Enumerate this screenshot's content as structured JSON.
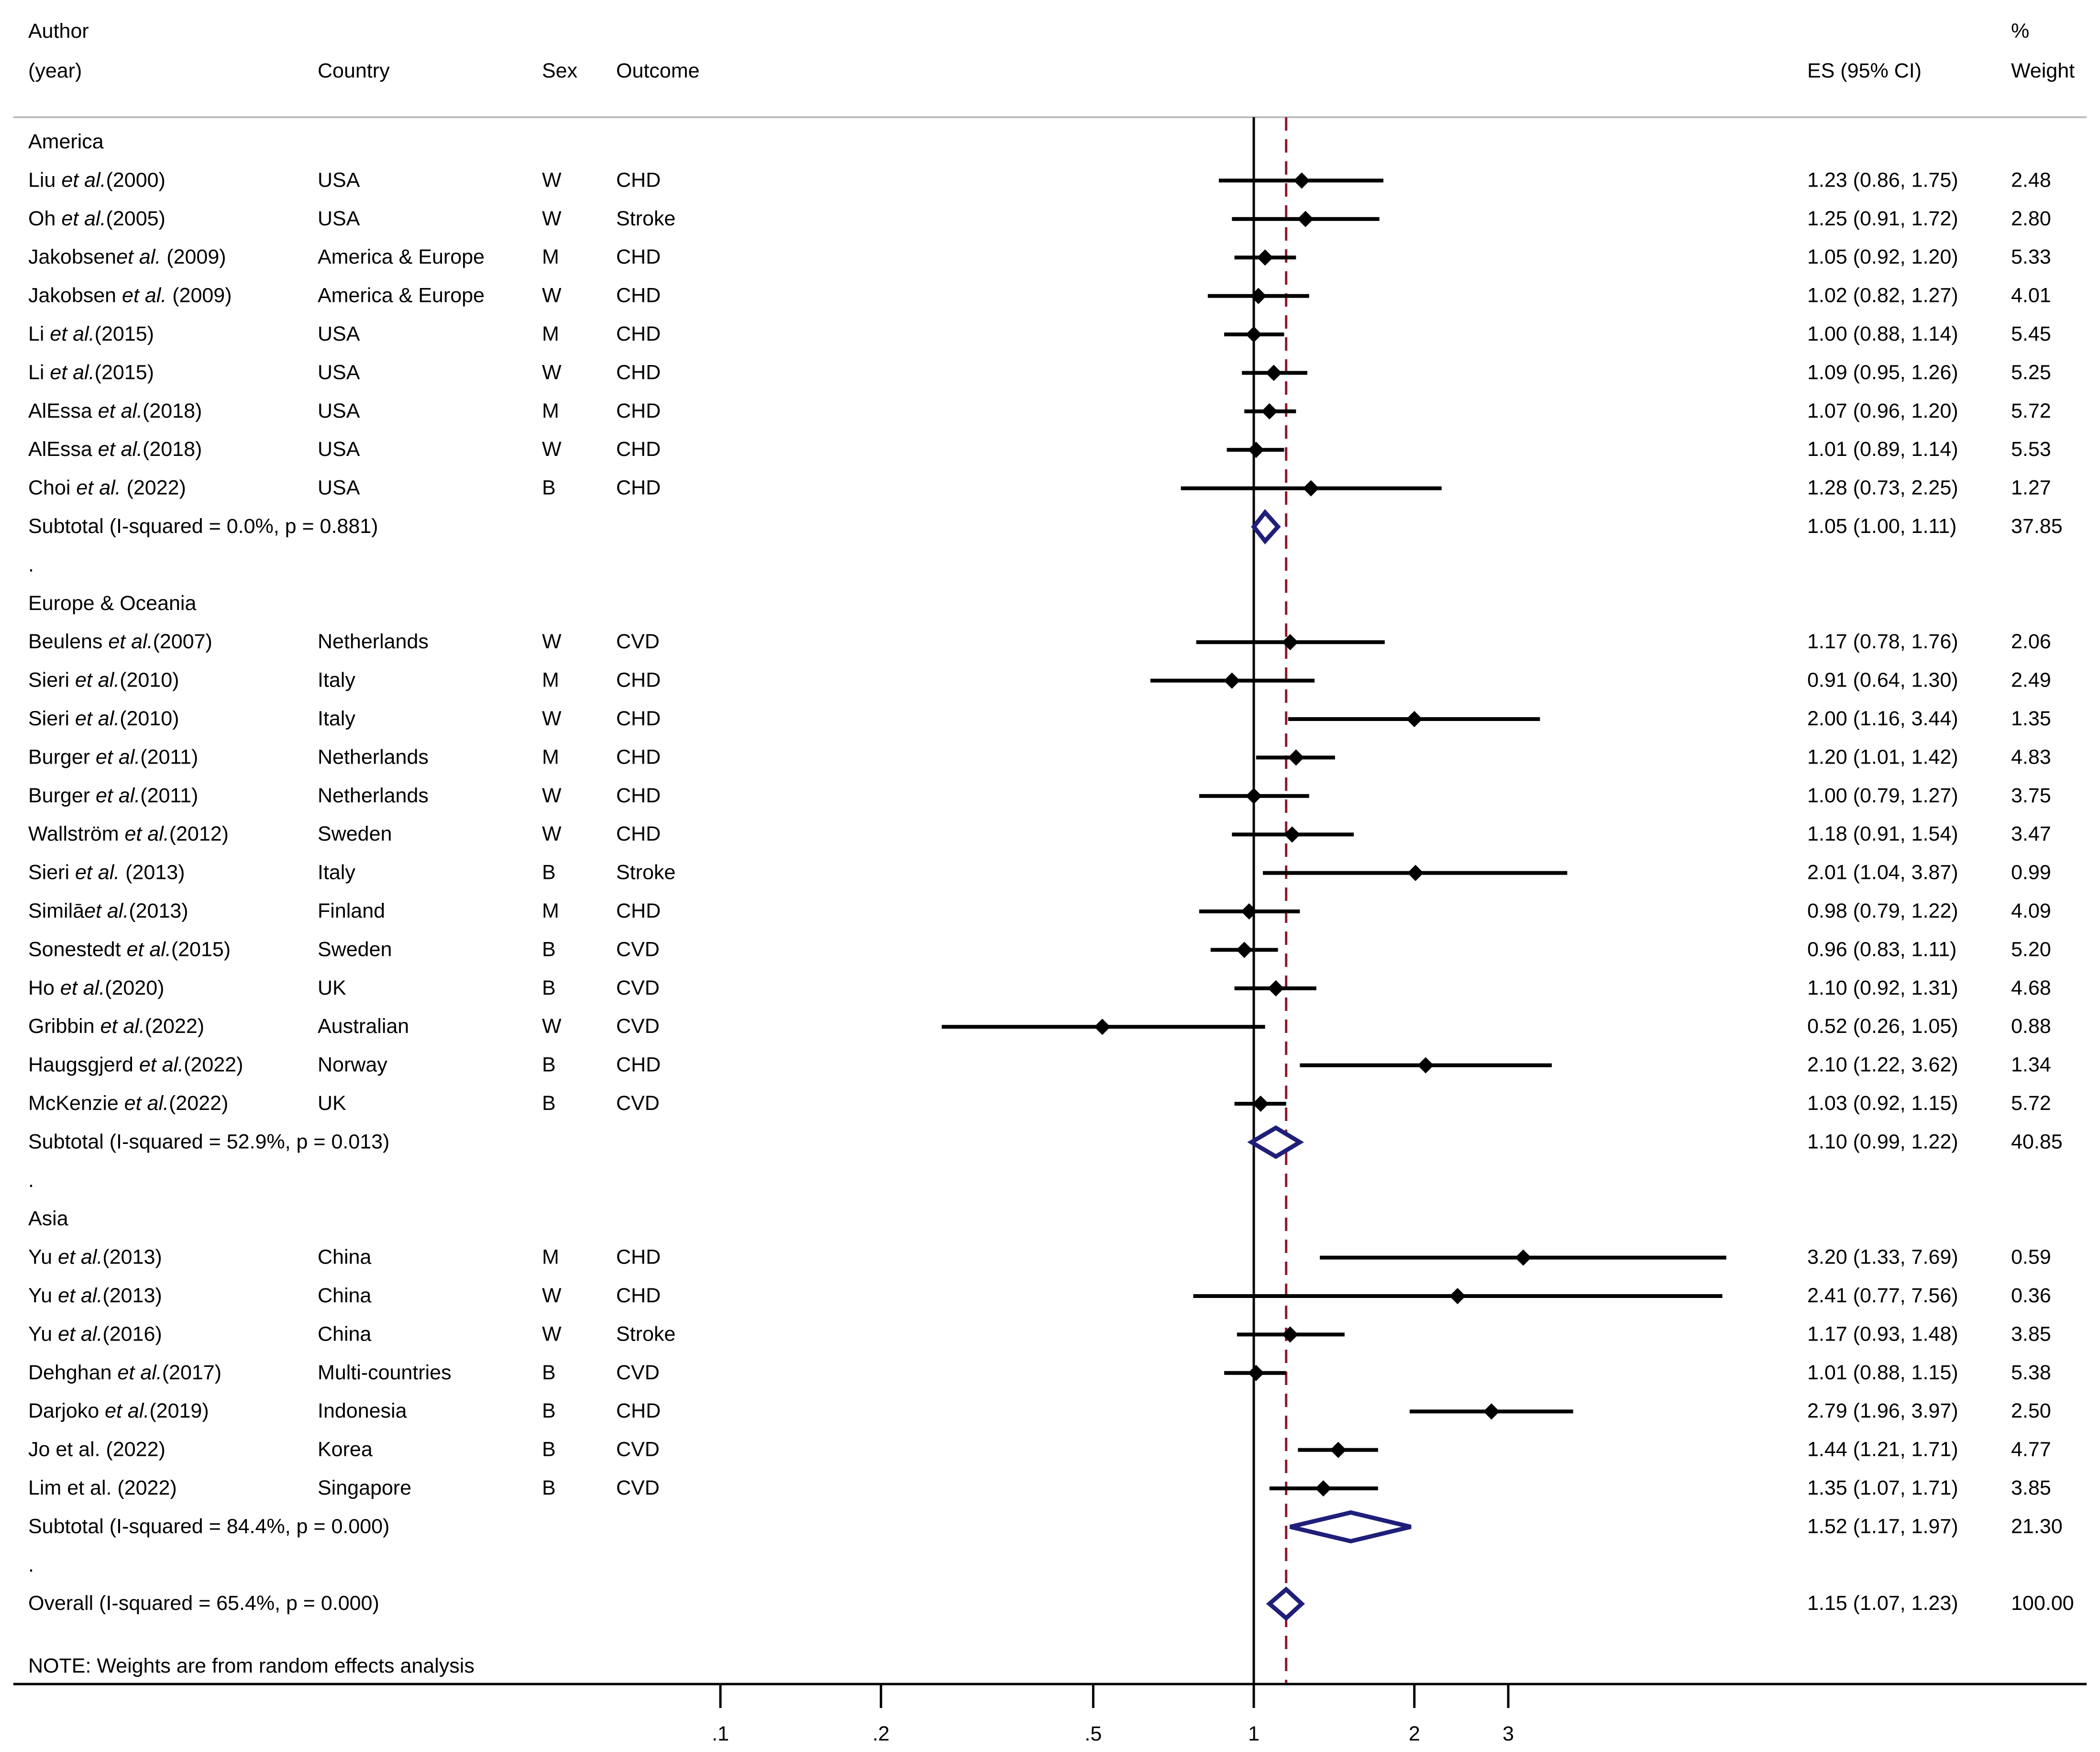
{
  "chart_data": {
    "type": "forest",
    "scale": "log",
    "xlim": [
      0.1,
      10
    ],
    "x_ticks": [
      {
        "value": 0.1,
        "label": ".1"
      },
      {
        "value": 0.2,
        "label": ".2"
      },
      {
        "value": 0.5,
        "label": ".5"
      },
      {
        "value": 1,
        "label": "1"
      },
      {
        "value": 2,
        "label": "2"
      },
      {
        "value": 3,
        "label": "3"
      }
    ],
    "null_line": 1,
    "overall_line": 1.15,
    "headers": {
      "author_line1": "Author",
      "author_line2": "(year)",
      "country": "Country",
      "sex": "Sex",
      "outcome": "Outcome",
      "es": "ES (95% CI)",
      "weight_line1": "%",
      "weight_line2": "Weight"
    },
    "rows": [
      {
        "kind": "group",
        "label": "America"
      },
      {
        "kind": "study",
        "author_pre": "Liu ",
        "author_it": "et al.",
        "author_post": "(2000)",
        "country": "USA",
        "sex": "W",
        "outcome": "CHD",
        "es": 1.23,
        "lo": 0.86,
        "hi": 1.75,
        "es_text": "1.23 (0.86, 1.75)",
        "weight": "2.48"
      },
      {
        "kind": "study",
        "author_pre": "Oh ",
        "author_it": "et al.",
        "author_post": "(2005)",
        "country": "USA",
        "sex": "W",
        "outcome": "Stroke",
        "es": 1.25,
        "lo": 0.91,
        "hi": 1.72,
        "es_text": "1.25 (0.91, 1.72)",
        "weight": "2.80"
      },
      {
        "kind": "study",
        "author_pre": "Jakobsen",
        "author_it": "et al.",
        "author_post": " (2009)",
        "country": "America & Europe",
        "sex": "M",
        "outcome": "CHD",
        "es": 1.05,
        "lo": 0.92,
        "hi": 1.2,
        "es_text": "1.05 (0.92, 1.20)",
        "weight": "5.33"
      },
      {
        "kind": "study",
        "author_pre": "Jakobsen ",
        "author_it": "et al.",
        "author_post": " (2009)",
        "country": "America & Europe",
        "sex": "W",
        "outcome": "CHD",
        "es": 1.02,
        "lo": 0.82,
        "hi": 1.27,
        "es_text": "1.02 (0.82, 1.27)",
        "weight": "4.01"
      },
      {
        "kind": "study",
        "author_pre": "Li ",
        "author_it": "et al.",
        "author_post": "(2015)",
        "country": "USA",
        "sex": "M",
        "outcome": "CHD",
        "es": 1.0,
        "lo": 0.88,
        "hi": 1.14,
        "es_text": "1.00 (0.88, 1.14)",
        "weight": "5.45"
      },
      {
        "kind": "study",
        "author_pre": "Li ",
        "author_it": "et al.",
        "author_post": "(2015)",
        "country": "USA",
        "sex": "W",
        "outcome": "CHD",
        "es": 1.09,
        "lo": 0.95,
        "hi": 1.26,
        "es_text": "1.09 (0.95, 1.26)",
        "weight": "5.25"
      },
      {
        "kind": "study",
        "author_pre": "AlEssa ",
        "author_it": "et al.",
        "author_post": "(2018)",
        "country": "USA",
        "sex": "M",
        "outcome": "CHD",
        "es": 1.07,
        "lo": 0.96,
        "hi": 1.2,
        "es_text": "1.07 (0.96, 1.20)",
        "weight": "5.72"
      },
      {
        "kind": "study",
        "author_pre": "AlEssa ",
        "author_it": "et al.",
        "author_post": "(2018)",
        "country": "USA",
        "sex": "W",
        "outcome": "CHD",
        "es": 1.01,
        "lo": 0.89,
        "hi": 1.14,
        "es_text": "1.01 (0.89, 1.14)",
        "weight": "5.53"
      },
      {
        "kind": "study",
        "author_pre": "Choi ",
        "author_it": "et al.",
        "author_post": " (2022)",
        "country": "USA",
        "sex": "B",
        "outcome": "CHD",
        "es": 1.28,
        "lo": 0.73,
        "hi": 2.25,
        "es_text": "1.28 (0.73, 2.25)",
        "weight": "1.27"
      },
      {
        "kind": "subtotal",
        "label": "Subtotal  (I-squared = 0.0%, p = 0.881)",
        "es": 1.05,
        "lo": 1.0,
        "hi": 1.11,
        "es_text": "1.05 (1.00, 1.11)",
        "weight": "37.85"
      },
      {
        "kind": "spacer",
        "label": "."
      },
      {
        "kind": "group",
        "label": "Europe & Oceania"
      },
      {
        "kind": "study",
        "author_pre": "Beulens ",
        "author_it": "et al.",
        "author_post": "(2007)",
        "country": "Netherlands",
        "sex": "W",
        "outcome": "CVD",
        "es": 1.17,
        "lo": 0.78,
        "hi": 1.76,
        "es_text": "1.17 (0.78, 1.76)",
        "weight": "2.06"
      },
      {
        "kind": "study",
        "author_pre": "Sieri  ",
        "author_it": "et al.",
        "author_post": "(2010)",
        "country": "Italy",
        "sex": "M",
        "outcome": "CHD",
        "es": 0.91,
        "lo": 0.64,
        "hi": 1.3,
        "es_text": "0.91 (0.64, 1.30)",
        "weight": "2.49"
      },
      {
        "kind": "study",
        "author_pre": "Sieri ",
        "author_it": "et al.",
        "author_post": "(2010)",
        "country": "Italy",
        "sex": "W",
        "outcome": "CHD",
        "es": 2.0,
        "lo": 1.16,
        "hi": 3.44,
        "es_text": "2.00 (1.16, 3.44)",
        "weight": "1.35"
      },
      {
        "kind": "study",
        "author_pre": "Burger ",
        "author_it": "et al.",
        "author_post": "(2011)",
        "country": "Netherlands",
        "sex": "M",
        "outcome": "CHD",
        "es": 1.2,
        "lo": 1.01,
        "hi": 1.42,
        "es_text": "1.20 (1.01, 1.42)",
        "weight": "4.83"
      },
      {
        "kind": "study",
        "author_pre": "Burger ",
        "author_it": "et al.",
        "author_post": "(2011)",
        "country": "Netherlands",
        "sex": "W",
        "outcome": "CHD",
        "es": 1.0,
        "lo": 0.79,
        "hi": 1.27,
        "es_text": "1.00 (0.79, 1.27)",
        "weight": "3.75"
      },
      {
        "kind": "study",
        "author_pre": "Wallström ",
        "author_it": "et al.",
        "author_post": "(2012)",
        "country": "Sweden",
        "sex": "W",
        "outcome": "CHD",
        "es": 1.18,
        "lo": 0.91,
        "hi": 1.54,
        "es_text": "1.18 (0.91, 1.54)",
        "weight": "3.47"
      },
      {
        "kind": "study",
        "author_pre": "Sieri ",
        "author_it": "et al.",
        "author_post": " (2013)",
        "country": "Italy",
        "sex": "B",
        "outcome": "Stroke",
        "es": 2.01,
        "lo": 1.04,
        "hi": 3.87,
        "es_text": "2.01 (1.04, 3.87)",
        "weight": "0.99"
      },
      {
        "kind": "study",
        "author_pre": "Similā",
        "author_it": "et al.",
        "author_post": "(2013)",
        "country": "Finland",
        "sex": "M",
        "outcome": "CHD",
        "es": 0.98,
        "lo": 0.79,
        "hi": 1.22,
        "es_text": "0.98 (0.79, 1.22)",
        "weight": "4.09"
      },
      {
        "kind": "study",
        "author_pre": "Sonestedt ",
        "author_it": "et al.",
        "author_post": "(2015)",
        "country": "Sweden",
        "sex": "B",
        "outcome": "CVD",
        "es": 0.96,
        "lo": 0.83,
        "hi": 1.11,
        "es_text": "0.96 (0.83, 1.11)",
        "weight": "5.20"
      },
      {
        "kind": "study",
        "author_pre": "Ho ",
        "author_it": "et al.",
        "author_post": "(2020)",
        "country": "UK",
        "sex": "B",
        "outcome": "CVD",
        "es": 1.1,
        "lo": 0.92,
        "hi": 1.31,
        "es_text": "1.10 (0.92, 1.31)",
        "weight": "4.68"
      },
      {
        "kind": "study",
        "author_pre": "Gribbin ",
        "author_it": "et al.",
        "author_post": "(2022)",
        "country": "Australian",
        "sex": "W",
        "outcome": "CVD",
        "es": 0.52,
        "lo": 0.26,
        "hi": 1.05,
        "es_text": "0.52 (0.26, 1.05)",
        "weight": "0.88"
      },
      {
        "kind": "study",
        "author_pre": "Haugsgjerd ",
        "author_it": "et al.",
        "author_post": "(2022)",
        "country": "Norway",
        "sex": "B",
        "outcome": "CHD",
        "es": 2.1,
        "lo": 1.22,
        "hi": 3.62,
        "es_text": "2.10 (1.22, 3.62)",
        "weight": "1.34"
      },
      {
        "kind": "study",
        "author_pre": "McKenzie ",
        "author_it": "et al.",
        "author_post": "(2022)",
        "country": "UK",
        "sex": "B",
        "outcome": "CVD",
        "es": 1.03,
        "lo": 0.92,
        "hi": 1.15,
        "es_text": "1.03 (0.92, 1.15)",
        "weight": "5.72"
      },
      {
        "kind": "subtotal",
        "label": "Subtotal  (I-squared = 52.9%, p = 0.013)",
        "es": 1.1,
        "lo": 0.99,
        "hi": 1.22,
        "es_text": "1.10 (0.99, 1.22)",
        "weight": "40.85"
      },
      {
        "kind": "spacer",
        "label": "."
      },
      {
        "kind": "group",
        "label": "Asia"
      },
      {
        "kind": "study",
        "author_pre": "Yu ",
        "author_it": "et al.",
        "author_post": "(2013)",
        "country": "China",
        "sex": "M",
        "outcome": "CHD",
        "es": 3.2,
        "lo": 1.33,
        "hi": 7.69,
        "es_text": "3.20 (1.33, 7.69)",
        "weight": "0.59"
      },
      {
        "kind": "study",
        "author_pre": "Yu ",
        "author_it": "et al.",
        "author_post": "(2013)",
        "country": "China",
        "sex": "W",
        "outcome": "CHD",
        "es": 2.41,
        "lo": 0.77,
        "hi": 7.56,
        "es_text": "2.41 (0.77, 7.56)",
        "weight": "0.36"
      },
      {
        "kind": "study",
        "author_pre": "Yu ",
        "author_it": "et al.",
        "author_post": "(2016)",
        "country": "China",
        "sex": "W",
        "outcome": "Stroke",
        "es": 1.17,
        "lo": 0.93,
        "hi": 1.48,
        "es_text": "1.17 (0.93, 1.48)",
        "weight": "3.85"
      },
      {
        "kind": "study",
        "author_pre": "Dehghan ",
        "author_it": "et al.",
        "author_post": "(2017)",
        "country": "Multi-countries",
        "sex": "B",
        "outcome": "CVD",
        "es": 1.01,
        "lo": 0.88,
        "hi": 1.15,
        "es_text": "1.01 (0.88, 1.15)",
        "weight": "5.38"
      },
      {
        "kind": "study",
        "author_pre": "Darjoko ",
        "author_it": "et al.",
        "author_post": "(2019)",
        "country": "Indonesia",
        "sex": "B",
        "outcome": "CHD",
        "es": 2.79,
        "lo": 1.96,
        "hi": 3.97,
        "es_text": "2.79 (1.96, 3.97)",
        "weight": "2.50"
      },
      {
        "kind": "study",
        "author_pre": "Jo et al. (2022)",
        "author_it": "",
        "author_post": "",
        "country": "Korea",
        "sex": "B",
        "outcome": "CVD",
        "es": 1.44,
        "lo": 1.21,
        "hi": 1.71,
        "es_text": "1.44 (1.21, 1.71)",
        "weight": "4.77"
      },
      {
        "kind": "study",
        "author_pre": "Lim et al. (2022)",
        "author_it": "",
        "author_post": "",
        "country": "Singapore",
        "sex": "B",
        "outcome": "CVD",
        "es": 1.35,
        "lo": 1.07,
        "hi": 1.71,
        "es_text": "1.35 (1.07, 1.71)",
        "weight": "3.85"
      },
      {
        "kind": "subtotal",
        "label": "Subtotal  (I-squared = 84.4%, p = 0.000)",
        "es": 1.52,
        "lo": 1.17,
        "hi": 1.97,
        "es_text": "1.52 (1.17, 1.97)",
        "weight": "21.30"
      },
      {
        "kind": "spacer",
        "label": "."
      },
      {
        "kind": "overall",
        "label": "Overall  (I-squared = 65.4%, p = 0.000)",
        "es": 1.15,
        "lo": 1.07,
        "hi": 1.23,
        "es_text": "1.15 (1.07, 1.23)",
        "weight": "100.00"
      }
    ],
    "note": "NOTE: Weights are from random effects analysis",
    "colors": {
      "text": "#000000",
      "marker": "#000000",
      "diamond": "#1f1f7a",
      "overall_line": "#8b1a2a",
      "axis": "#000000"
    }
  }
}
